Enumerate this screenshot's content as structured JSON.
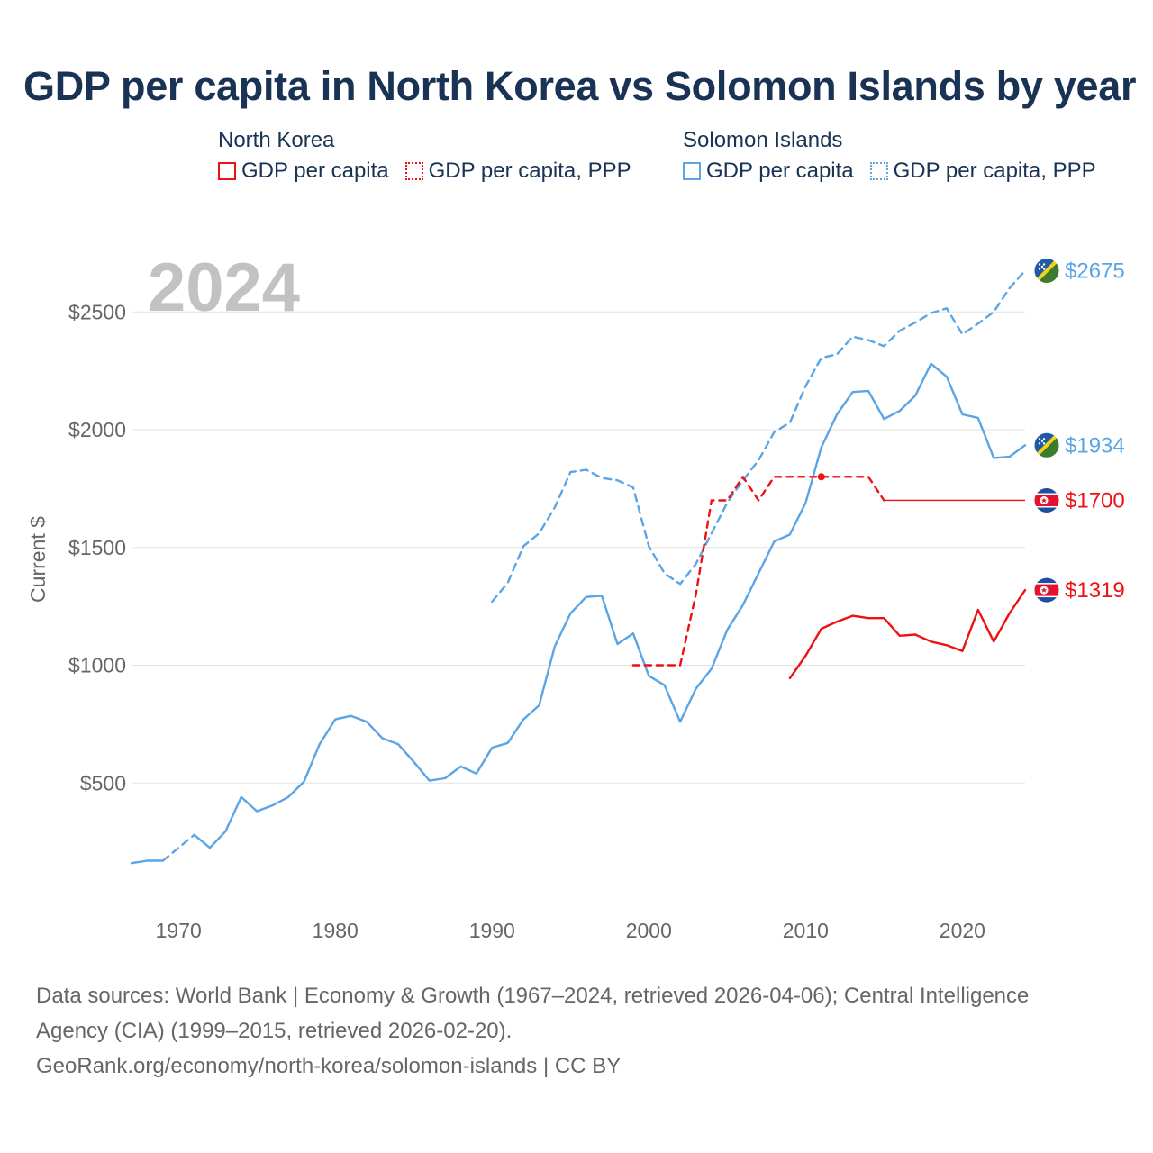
{
  "title": "GDP per capita in North Korea vs Solomon Islands by year",
  "legend": {
    "groups": [
      {
        "country": "North Korea",
        "color": "#ee1111",
        "items": [
          {
            "label": "GDP per capita",
            "style": "solid"
          },
          {
            "label": "GDP per capita, PPP",
            "style": "dotted"
          }
        ]
      },
      {
        "country": "Solomon Islands",
        "color": "#5aa5e6",
        "items": [
          {
            "label": "GDP per capita",
            "style": "solid"
          },
          {
            "label": "GDP per capita, PPP",
            "style": "dotted"
          }
        ]
      }
    ]
  },
  "footer": {
    "line1": "Data sources: World Bank | Economy & Growth (1967–2024, retrieved 2026-04-06); Central Intelligence",
    "line2": "Agency (CIA) (1999–2015, retrieved 2026-02-20).",
    "line3": "GeoRank.org/economy/north-korea/solomon-islands | CC BY"
  },
  "chart_data": {
    "type": "line",
    "title": "GDP per capita in North Korea vs Solomon Islands by year",
    "year_label": "2024",
    "ylabel": "Current $",
    "xlabel": "",
    "xlim": [
      1967,
      2024
    ],
    "ylim": [
      0,
      2800
    ],
    "x_ticks": [
      1970,
      1980,
      1990,
      2000,
      2010,
      2020
    ],
    "y_ticks": [
      500,
      1000,
      1500,
      2000,
      2500
    ],
    "y_tick_labels": [
      "$500",
      "$1000",
      "$1500",
      "$2000",
      "$2500"
    ],
    "series": [
      {
        "name": "Solomon Islands GDP per capita, PPP",
        "color": "#5aa5e6",
        "dash": "dashed",
        "end_label": "$2675",
        "flag": "solomon-islands",
        "points": [
          [
            1990,
            1270
          ],
          [
            1991,
            1350
          ],
          [
            1992,
            1505
          ],
          [
            1993,
            1560
          ],
          [
            1994,
            1670
          ],
          [
            1995,
            1820
          ],
          [
            1996,
            1830
          ],
          [
            1997,
            1795
          ],
          [
            1998,
            1785
          ],
          [
            1999,
            1755
          ],
          [
            2000,
            1505
          ],
          [
            2001,
            1390
          ],
          [
            2002,
            1345
          ],
          [
            2003,
            1430
          ],
          [
            2004,
            1560
          ],
          [
            2005,
            1690
          ],
          [
            2006,
            1785
          ],
          [
            2007,
            1870
          ],
          [
            2008,
            1990
          ],
          [
            2009,
            2030
          ],
          [
            2010,
            2185
          ],
          [
            2011,
            2305
          ],
          [
            2012,
            2320
          ],
          [
            2013,
            2395
          ],
          [
            2014,
            2380
          ],
          [
            2015,
            2355
          ],
          [
            2016,
            2420
          ],
          [
            2017,
            2455
          ],
          [
            2018,
            2495
          ],
          [
            2019,
            2515
          ],
          [
            2020,
            2405
          ],
          [
            2021,
            2450
          ],
          [
            2022,
            2500
          ],
          [
            2023,
            2600
          ],
          [
            2024,
            2675
          ]
        ]
      },
      {
        "name": "Solomon Islands GDP per capita",
        "color": "#5aa5e6",
        "dash": "solid",
        "end_label": "$1934",
        "flag": "solomon-islands",
        "points": [
          [
            1967,
            160
          ],
          [
            1968,
            170
          ],
          [
            1969,
            170
          ],
          [
            1970,
            225
          ],
          [
            1971,
            280
          ],
          [
            1972,
            225
          ],
          [
            1973,
            295
          ],
          [
            1974,
            440
          ],
          [
            1975,
            380
          ],
          [
            1976,
            405
          ],
          [
            1977,
            440
          ],
          [
            1978,
            505
          ],
          [
            1979,
            665
          ],
          [
            1980,
            770
          ],
          [
            1981,
            785
          ],
          [
            1982,
            760
          ],
          [
            1983,
            690
          ],
          [
            1984,
            665
          ],
          [
            1985,
            590
          ],
          [
            1986,
            510
          ],
          [
            1987,
            520
          ],
          [
            1988,
            570
          ],
          [
            1989,
            540
          ],
          [
            1990,
            650
          ],
          [
            1991,
            670
          ],
          [
            1992,
            770
          ],
          [
            1993,
            830
          ],
          [
            1994,
            1080
          ],
          [
            1995,
            1220
          ],
          [
            1996,
            1290
          ],
          [
            1997,
            1295
          ],
          [
            1998,
            1090
          ],
          [
            1999,
            1135
          ],
          [
            2000,
            955
          ],
          [
            2001,
            915
          ],
          [
            2002,
            760
          ],
          [
            2003,
            900
          ],
          [
            2004,
            985
          ],
          [
            2005,
            1150
          ],
          [
            2006,
            1255
          ],
          [
            2007,
            1390
          ],
          [
            2008,
            1525
          ],
          [
            2009,
            1555
          ],
          [
            2010,
            1690
          ],
          [
            2011,
            1925
          ],
          [
            2012,
            2065
          ],
          [
            2013,
            2160
          ],
          [
            2014,
            2165
          ],
          [
            2015,
            2045
          ],
          [
            2016,
            2080
          ],
          [
            2017,
            2145
          ],
          [
            2018,
            2280
          ],
          [
            2019,
            2225
          ],
          [
            2020,
            2065
          ],
          [
            2021,
            2050
          ],
          [
            2022,
            1880
          ],
          [
            2023,
            1885
          ],
          [
            2024,
            1934
          ]
        ]
      },
      {
        "name": "North Korea GDP per capita, PPP",
        "color": "#ee1111",
        "dash": "dashed",
        "end_label": "$1700",
        "flag": "north-korea",
        "points": [
          [
            1999,
            1000
          ],
          [
            2000,
            1000
          ],
          [
            2001,
            1000
          ],
          [
            2002,
            1000
          ],
          [
            2003,
            1300
          ],
          [
            2004,
            1700
          ],
          [
            2005,
            1700
          ],
          [
            2006,
            1800
          ],
          [
            2007,
            1700
          ],
          [
            2008,
            1800
          ],
          [
            2009,
            1800
          ],
          [
            2010,
            1800
          ],
          [
            2011,
            1800
          ],
          [
            2012,
            1800
          ],
          [
            2013,
            1800
          ],
          [
            2014,
            1800
          ],
          [
            2015,
            1700
          ]
        ],
        "extension_to": 2024
      },
      {
        "name": "North Korea GDP per capita",
        "color": "#ee1111",
        "dash": "solid",
        "end_label": "$1319",
        "flag": "north-korea",
        "points": [
          [
            2009,
            945
          ],
          [
            2010,
            1040
          ],
          [
            2011,
            1155
          ],
          [
            2012,
            1185
          ],
          [
            2013,
            1210
          ],
          [
            2014,
            1200
          ],
          [
            2015,
            1200
          ],
          [
            2016,
            1125
          ],
          [
            2017,
            1130
          ],
          [
            2018,
            1100
          ],
          [
            2019,
            1085
          ],
          [
            2020,
            1060
          ],
          [
            2021,
            1235
          ],
          [
            2022,
            1100
          ],
          [
            2023,
            1220
          ],
          [
            2024,
            1319
          ]
        ]
      }
    ]
  }
}
